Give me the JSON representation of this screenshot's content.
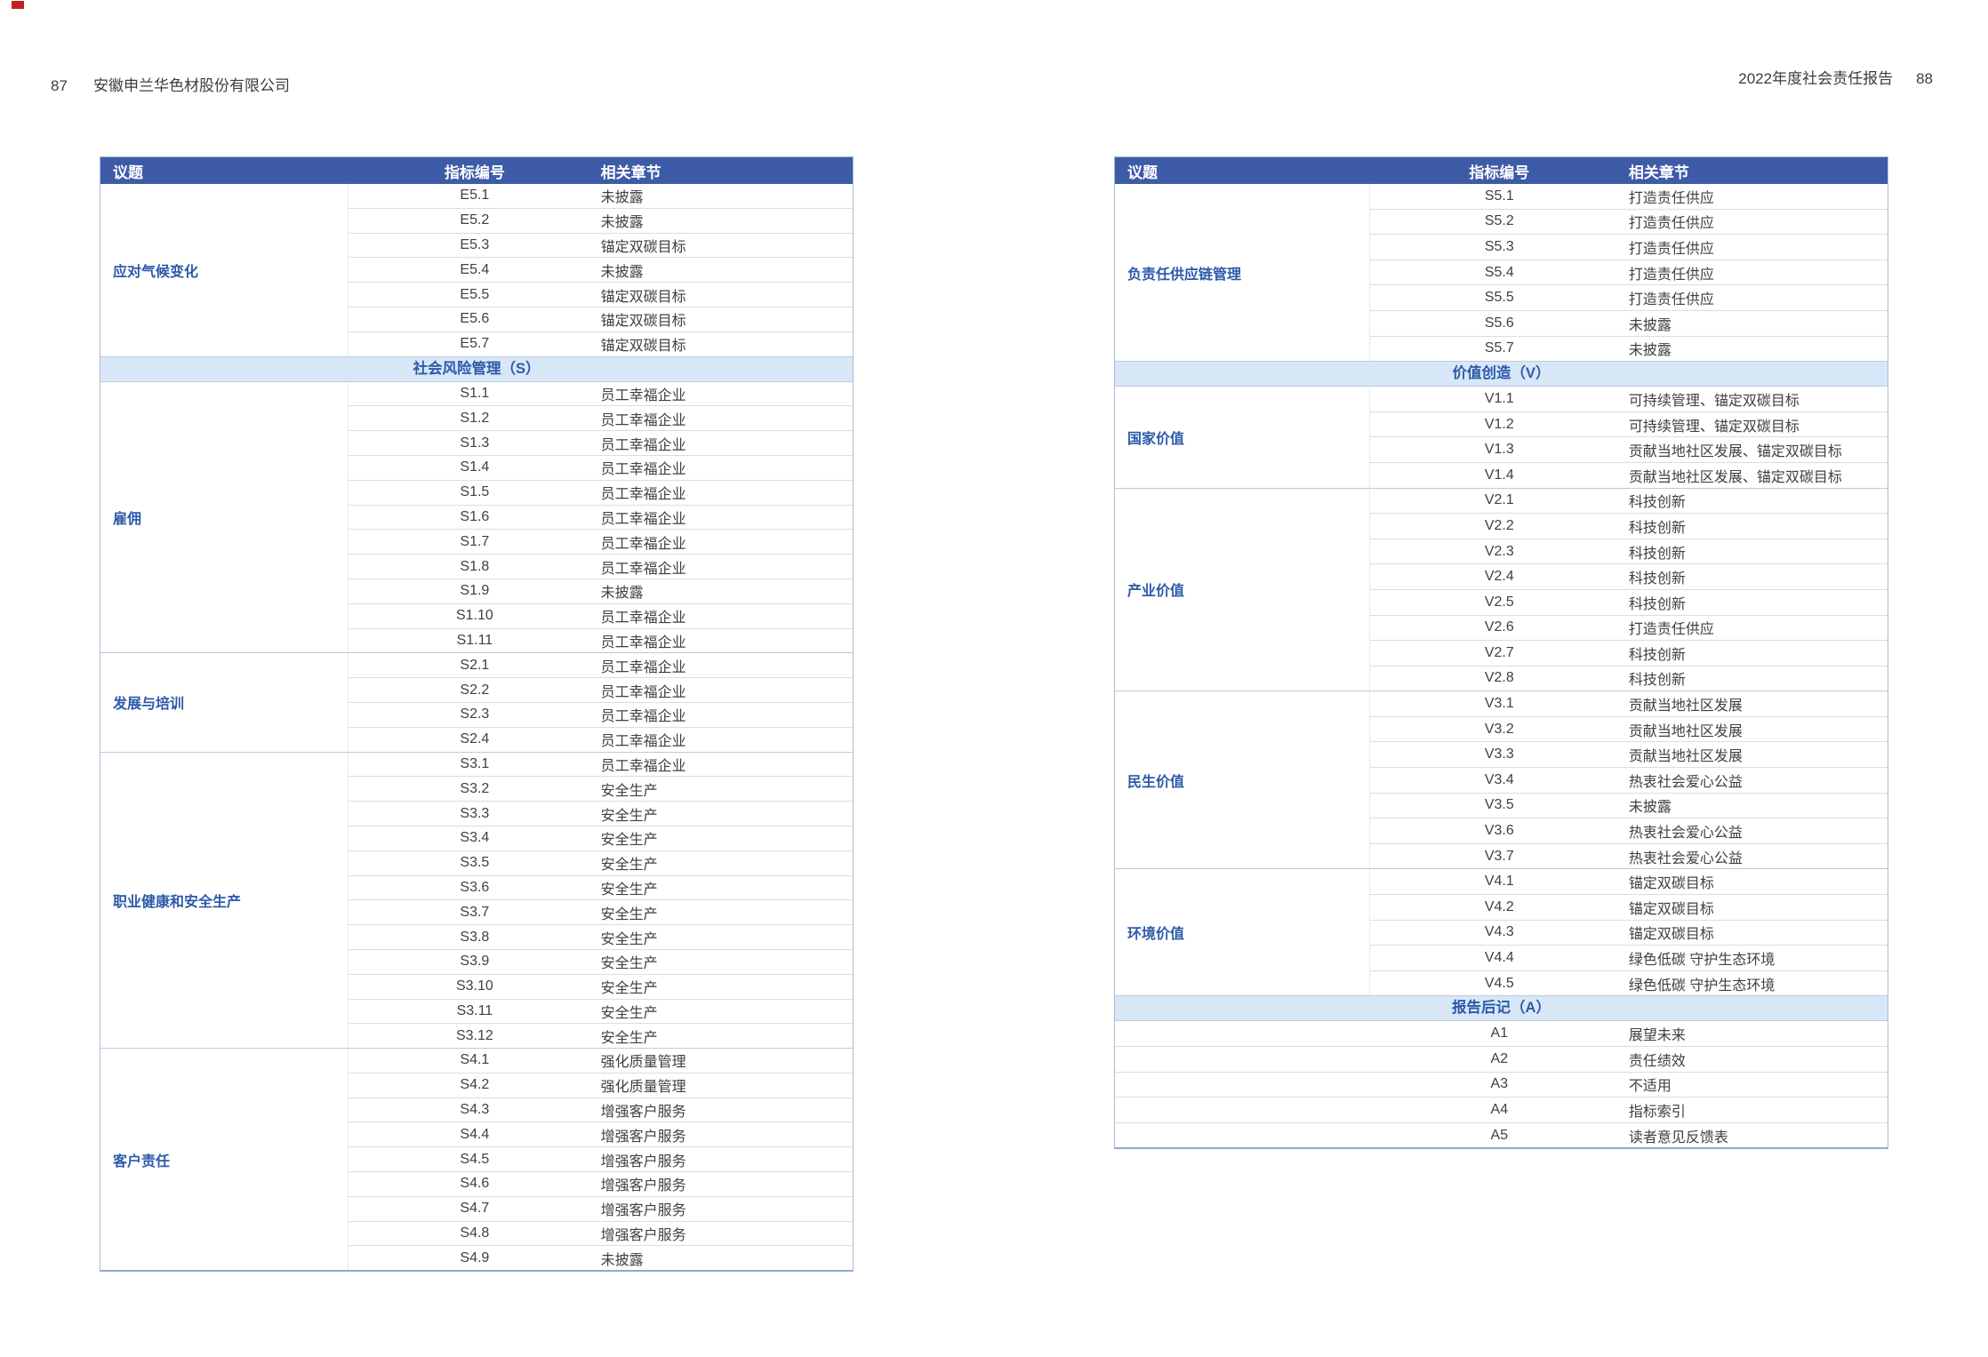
{
  "page": {
    "left_page_number": "87",
    "company_name": "安徽申兰华色材股份有限公司",
    "report_title": "2022年度社会责任报告",
    "right_page_number": "88"
  },
  "columns": {
    "topic": "议题",
    "indicator": "指标编号",
    "chapter": "相关章节"
  },
  "colors": {
    "header_bg": "#3d5ba6",
    "header_text": "#ffffff",
    "section_bg": "#d7e7f7",
    "accent_text": "#2d5aa9",
    "corner_mark": "#c42020"
  },
  "left_table": {
    "blocks": [
      {
        "type": "group",
        "topic": "应对气候变化",
        "rows": [
          [
            "E5.1",
            "未披露"
          ],
          [
            "E5.2",
            "未披露"
          ],
          [
            "E5.3",
            "锚定双碳目标"
          ],
          [
            "E5.4",
            "未披露"
          ],
          [
            "E5.5",
            "锚定双碳目标"
          ],
          [
            "E5.6",
            "锚定双碳目标"
          ],
          [
            "E5.7",
            "锚定双碳目标"
          ]
        ]
      },
      {
        "type": "section",
        "label": "社会风险管理（S）"
      },
      {
        "type": "group",
        "topic": "雇佣",
        "rows": [
          [
            "S1.1",
            "员工幸福企业"
          ],
          [
            "S1.2",
            "员工幸福企业"
          ],
          [
            "S1.3",
            "员工幸福企业"
          ],
          [
            "S1.4",
            "员工幸福企业"
          ],
          [
            "S1.5",
            "员工幸福企业"
          ],
          [
            "S1.6",
            "员工幸福企业"
          ],
          [
            "S1.7",
            "员工幸福企业"
          ],
          [
            "S1.8",
            "员工幸福企业"
          ],
          [
            "S1.9",
            "未披露"
          ],
          [
            "S1.10",
            "员工幸福企业"
          ],
          [
            "S1.11",
            "员工幸福企业"
          ]
        ]
      },
      {
        "type": "group",
        "topic": "发展与培训",
        "rows": [
          [
            "S2.1",
            "员工幸福企业"
          ],
          [
            "S2.2",
            "员工幸福企业"
          ],
          [
            "S2.3",
            "员工幸福企业"
          ],
          [
            "S2.4",
            "员工幸福企业"
          ]
        ]
      },
      {
        "type": "group",
        "topic": "职业健康和安全生产",
        "rows": [
          [
            "S3.1",
            "员工幸福企业"
          ],
          [
            "S3.2",
            "安全生产"
          ],
          [
            "S3.3",
            "安全生产"
          ],
          [
            "S3.4",
            "安全生产"
          ],
          [
            "S3.5",
            "安全生产"
          ],
          [
            "S3.6",
            "安全生产"
          ],
          [
            "S3.7",
            "安全生产"
          ],
          [
            "S3.8",
            "安全生产"
          ],
          [
            "S3.9",
            "安全生产"
          ],
          [
            "S3.10",
            "安全生产"
          ],
          [
            "S3.11",
            "安全生产"
          ],
          [
            "S3.12",
            "安全生产"
          ]
        ]
      },
      {
        "type": "group",
        "topic": "客户责任",
        "rows": [
          [
            "S4.1",
            "强化质量管理"
          ],
          [
            "S4.2",
            "强化质量管理"
          ],
          [
            "S4.3",
            "增强客户服务"
          ],
          [
            "S4.4",
            "增强客户服务"
          ],
          [
            "S4.5",
            "增强客户服务"
          ],
          [
            "S4.6",
            "增强客户服务"
          ],
          [
            "S4.7",
            "增强客户服务"
          ],
          [
            "S4.8",
            "增强客户服务"
          ],
          [
            "S4.9",
            "未披露"
          ]
        ]
      }
    ]
  },
  "right_table": {
    "blocks": [
      {
        "type": "group",
        "topic": "负责任供应链管理",
        "rows": [
          [
            "S5.1",
            "打造责任供应"
          ],
          [
            "S5.2",
            "打造责任供应"
          ],
          [
            "S5.3",
            "打造责任供应"
          ],
          [
            "S5.4",
            "打造责任供应"
          ],
          [
            "S5.5",
            "打造责任供应"
          ],
          [
            "S5.6",
            "未披露"
          ],
          [
            "S5.7",
            "未披露"
          ]
        ]
      },
      {
        "type": "section",
        "label": "价值创造（V）"
      },
      {
        "type": "group",
        "topic": "国家价值",
        "rows": [
          [
            "V1.1",
            "可持续管理、锚定双碳目标"
          ],
          [
            "V1.2",
            "可持续管理、锚定双碳目标"
          ],
          [
            "V1.3",
            "贡献当地社区发展、锚定双碳目标"
          ],
          [
            "V1.4",
            "贡献当地社区发展、锚定双碳目标"
          ]
        ]
      },
      {
        "type": "group",
        "topic": "产业价值",
        "rows": [
          [
            "V2.1",
            "科技创新"
          ],
          [
            "V2.2",
            "科技创新"
          ],
          [
            "V2.3",
            "科技创新"
          ],
          [
            "V2.4",
            "科技创新"
          ],
          [
            "V2.5",
            "科技创新"
          ],
          [
            "V2.6",
            "打造责任供应"
          ],
          [
            "V2.7",
            "科技创新"
          ],
          [
            "V2.8",
            "科技创新"
          ]
        ]
      },
      {
        "type": "group",
        "topic": "民生价值",
        "rows": [
          [
            "V3.1",
            "贡献当地社区发展"
          ],
          [
            "V3.2",
            "贡献当地社区发展"
          ],
          [
            "V3.3",
            "贡献当地社区发展"
          ],
          [
            "V3.4",
            "热衷社会爱心公益"
          ],
          [
            "V3.5",
            "未披露"
          ],
          [
            "V3.6",
            "热衷社会爱心公益"
          ],
          [
            "V3.7",
            "热衷社会爱心公益"
          ]
        ]
      },
      {
        "type": "group",
        "topic": "环境价值",
        "rows": [
          [
            "V4.1",
            "锚定双碳目标"
          ],
          [
            "V4.2",
            "锚定双碳目标"
          ],
          [
            "V4.3",
            "锚定双碳目标"
          ],
          [
            "V4.4",
            "绿色低碳 守护生态环境"
          ],
          [
            "V4.5",
            "绿色低碳 守护生态环境"
          ]
        ]
      },
      {
        "type": "section",
        "label": "报告后记（A）"
      },
      {
        "type": "group",
        "topic": "",
        "rows": [
          [
            "A1",
            "展望未来"
          ],
          [
            "A2",
            "责任绩效"
          ],
          [
            "A3",
            "不适用"
          ],
          [
            "A4",
            "指标索引"
          ],
          [
            "A5",
            "读者意见反馈表"
          ]
        ]
      }
    ]
  }
}
